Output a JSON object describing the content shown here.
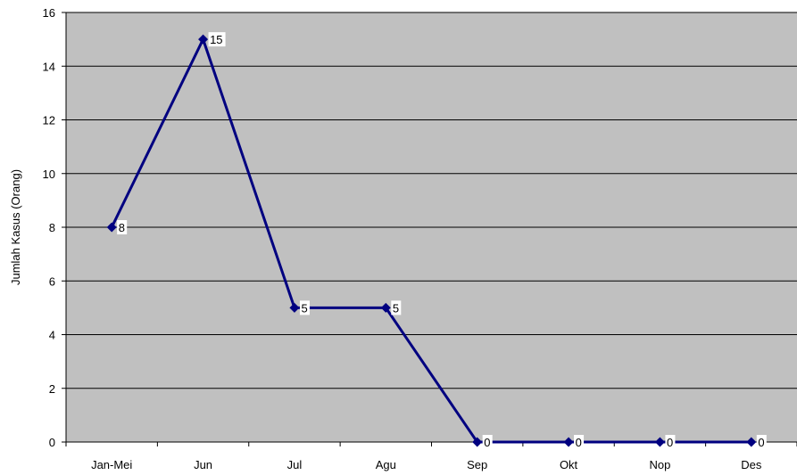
{
  "chart_data": {
    "type": "line",
    "categories": [
      "Jan-Mei",
      "Jun",
      "Jul",
      "Agu",
      "Sep",
      "Okt",
      "Nop",
      "Des"
    ],
    "series": [
      {
        "values": [
          8,
          15,
          5,
          5,
          0,
          0,
          0,
          0
        ]
      }
    ],
    "ylabel": "Jumlah Kasus (Orang)",
    "xlabel": "",
    "ylim": [
      0,
      16
    ],
    "yticks": [
      0,
      2,
      4,
      6,
      8,
      10,
      12,
      14,
      16
    ],
    "grid": true,
    "legend": "none",
    "colors": {
      "plot_background": "#c0c0c0",
      "line": "#000080",
      "gridline": "#000000",
      "label_background": "#ffffff"
    }
  }
}
